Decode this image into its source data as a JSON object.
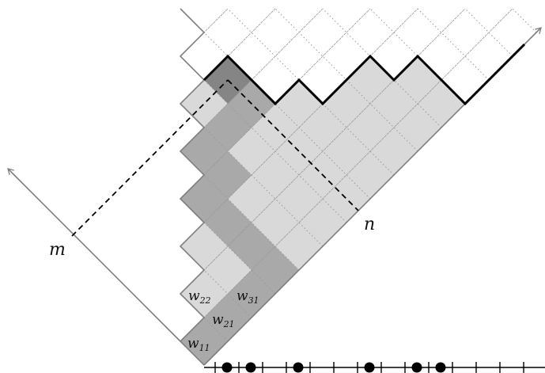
{
  "labels": {
    "m": "m",
    "n": "n",
    "w22": {
      "base": "w",
      "sub": "22"
    },
    "w31": {
      "base": "w",
      "sub": "31"
    },
    "w21": {
      "base": "w",
      "sub": "21"
    },
    "w11": {
      "base": "w",
      "sub": "11"
    }
  },
  "colors": {
    "light_region": "#d9d9d9",
    "mid_region": "#a9a9a9",
    "dark_cell": "#858585",
    "axis_gray": "#7f7f7f",
    "grid_dots": "#999999",
    "profile_path": "#000000"
  },
  "number_line": {
    "tick_count": 14,
    "dot_positions": [
      1,
      2,
      4,
      7,
      9,
      10
    ]
  }
}
